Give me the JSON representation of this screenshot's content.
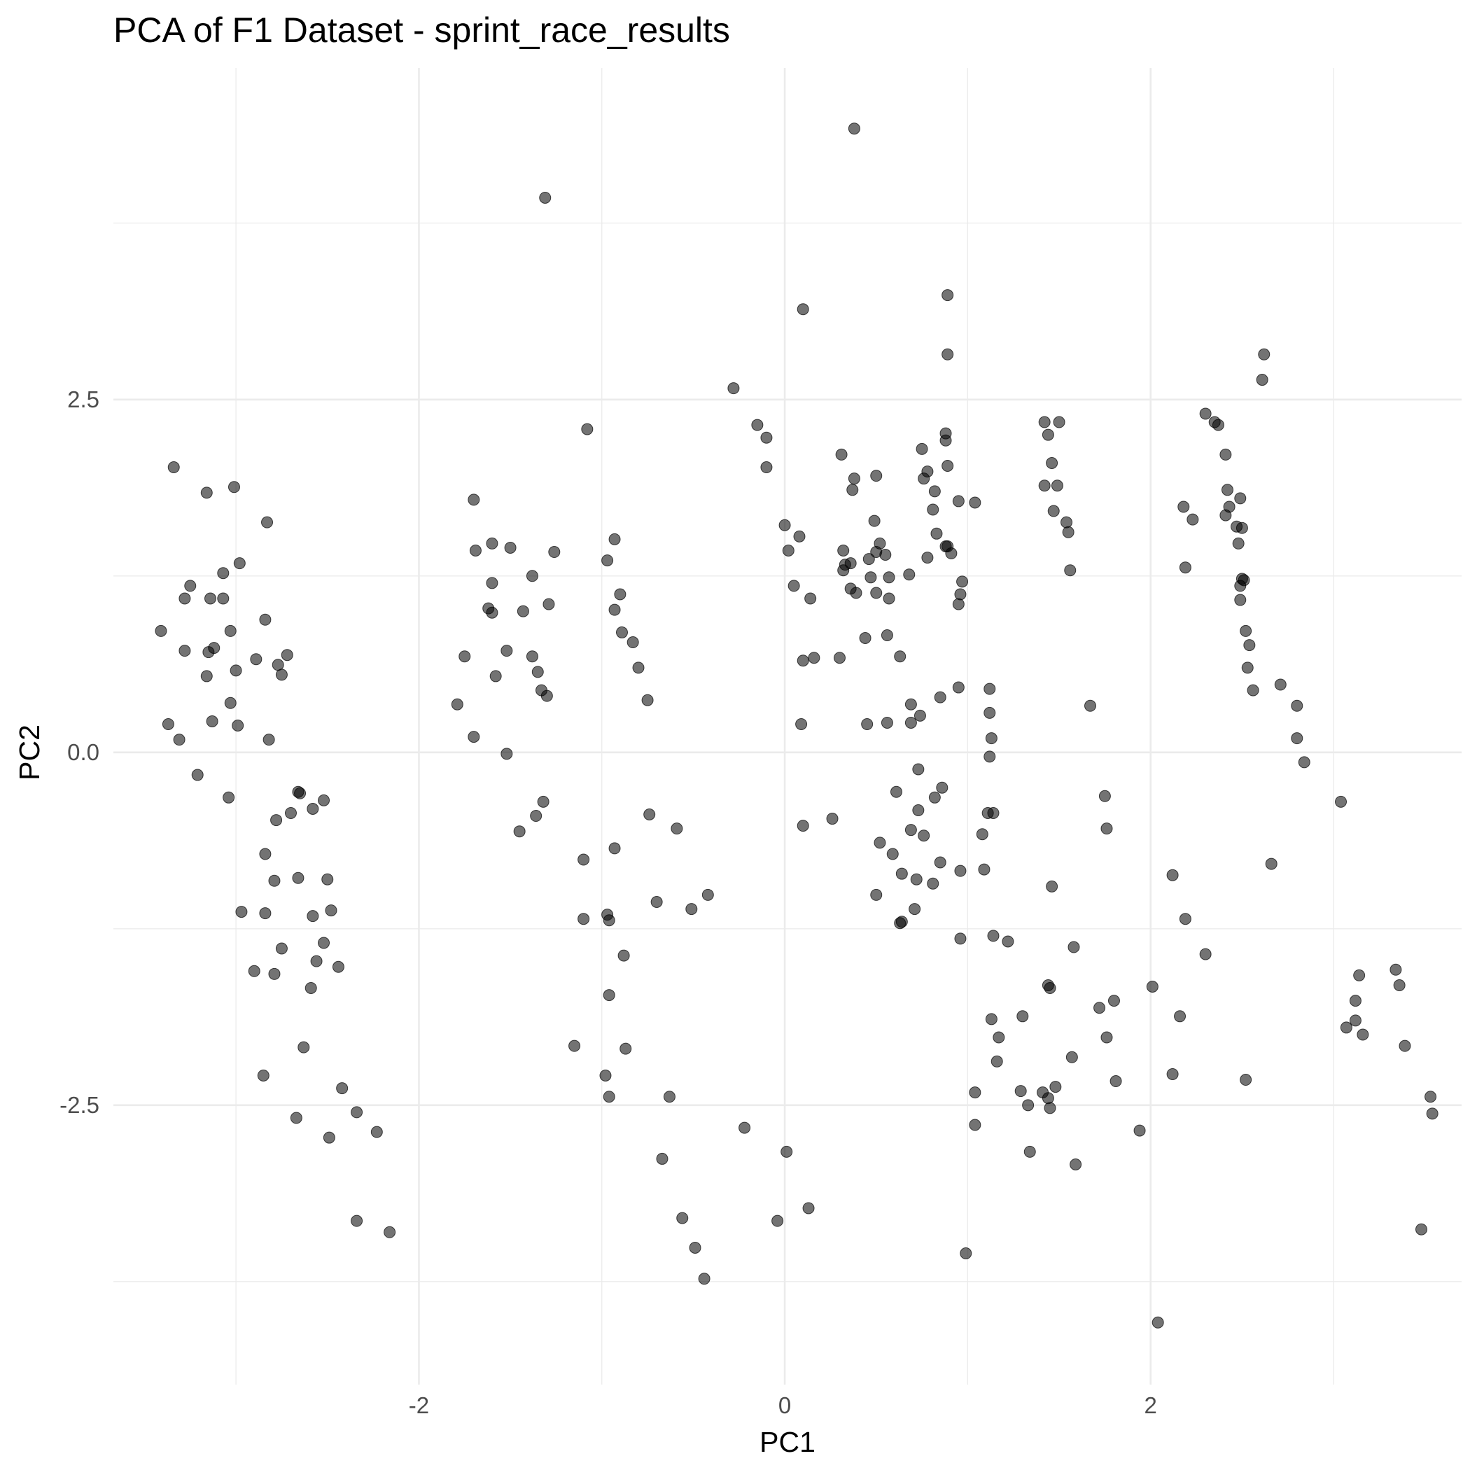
{
  "chart_data": {
    "type": "scatter",
    "title": "PCA of F1 Dataset - sprint_race_results",
    "xlabel": "PC1",
    "ylabel": "PC2",
    "xlim": [
      -3.67,
      3.7
    ],
    "ylim": [
      -4.48,
      4.85
    ],
    "x_ticks": [
      -2,
      0,
      2
    ],
    "x_tick_labels": [
      "-2",
      "0",
      "2"
    ],
    "x_minor": [
      -3,
      -1,
      1,
      3
    ],
    "y_ticks": [
      -2.5,
      0.0,
      2.5
    ],
    "y_tick_labels": [
      "-2.5",
      "0.0",
      "2.5"
    ],
    "y_minor": [
      -3.75,
      -1.25,
      1.25,
      3.75
    ],
    "grid": true,
    "point_color": "#000000",
    "point_opacity": 0.55,
    "points": [
      [
        -3.34,
        2.02
      ],
      [
        -3.16,
        1.84
      ],
      [
        -3.01,
        1.88
      ],
      [
        -2.83,
        1.63
      ],
      [
        -3.25,
        1.18
      ],
      [
        -3.28,
        1.09
      ],
      [
        -3.14,
        1.09
      ],
      [
        -3.07,
        1.09
      ],
      [
        -3.07,
        1.27
      ],
      [
        -2.98,
        1.34
      ],
      [
        -3.41,
        0.86
      ],
      [
        -3.12,
        0.74
      ],
      [
        -3.15,
        0.71
      ],
      [
        -2.84,
        0.94
      ],
      [
        -3.0,
        0.58
      ],
      [
        -3.16,
        0.54
      ],
      [
        -2.89,
        0.66
      ],
      [
        -2.77,
        0.62
      ],
      [
        -2.75,
        0.55
      ],
      [
        -2.72,
        0.69
      ],
      [
        -3.03,
        0.86
      ],
      [
        -3.28,
        0.72
      ],
      [
        -3.03,
        0.35
      ],
      [
        -3.37,
        0.2
      ],
      [
        -3.31,
        0.09
      ],
      [
        -3.13,
        0.22
      ],
      [
        -2.99,
        0.19
      ],
      [
        -2.82,
        0.09
      ],
      [
        -3.21,
        -0.16
      ],
      [
        -3.04,
        -0.32
      ],
      [
        -2.66,
        -0.28
      ],
      [
        -2.65,
        -0.29
      ],
      [
        -2.58,
        -0.4
      ],
      [
        -2.52,
        -0.34
      ],
      [
        -2.7,
        -0.43
      ],
      [
        -2.78,
        -0.48
      ],
      [
        -2.84,
        -0.72
      ],
      [
        -2.79,
        -0.91
      ],
      [
        -2.66,
        -0.89
      ],
      [
        -2.5,
        -0.9
      ],
      [
        -2.58,
        -1.16
      ],
      [
        -2.48,
        -1.12
      ],
      [
        -2.97,
        -1.13
      ],
      [
        -2.84,
        -1.14
      ],
      [
        -2.75,
        -1.39
      ],
      [
        -2.52,
        -1.35
      ],
      [
        -2.56,
        -1.48
      ],
      [
        -2.9,
        -1.55
      ],
      [
        -2.79,
        -1.57
      ],
      [
        -2.44,
        -1.52
      ],
      [
        -2.59,
        -1.67
      ],
      [
        -2.63,
        -2.09
      ],
      [
        -2.85,
        -2.29
      ],
      [
        -2.67,
        -2.59
      ],
      [
        -2.42,
        -2.38
      ],
      [
        -2.34,
        -2.55
      ],
      [
        -2.49,
        -2.73
      ],
      [
        -2.23,
        -2.69
      ],
      [
        -2.34,
        -3.32
      ],
      [
        -2.16,
        -3.4
      ],
      [
        -1.7,
        1.79
      ],
      [
        -1.69,
        1.43
      ],
      [
        -1.6,
        1.48
      ],
      [
        -1.5,
        1.45
      ],
      [
        -1.6,
        1.2
      ],
      [
        -1.62,
        1.02
      ],
      [
        -1.6,
        0.99
      ],
      [
        -1.43,
        1.0
      ],
      [
        -1.38,
        1.25
      ],
      [
        -1.26,
        1.42
      ],
      [
        -1.29,
        1.05
      ],
      [
        -1.75,
        0.68
      ],
      [
        -1.52,
        0.72
      ],
      [
        -1.58,
        0.54
      ],
      [
        -1.38,
        0.68
      ],
      [
        -1.35,
        0.57
      ],
      [
        -1.33,
        0.44
      ],
      [
        -1.3,
        0.4
      ],
      [
        -1.79,
        0.34
      ],
      [
        -1.7,
        0.11
      ],
      [
        -1.52,
        -0.01
      ],
      [
        -1.32,
        -0.35
      ],
      [
        -1.36,
        -0.45
      ],
      [
        -1.45,
        -0.56
      ],
      [
        -1.31,
        3.93
      ],
      [
        -1.08,
        2.29
      ],
      [
        -0.93,
        1.51
      ],
      [
        -0.97,
        1.36
      ],
      [
        -0.9,
        1.12
      ],
      [
        -0.93,
        1.01
      ],
      [
        -0.89,
        0.85
      ],
      [
        -0.83,
        0.78
      ],
      [
        -0.8,
        0.6
      ],
      [
        -0.75,
        0.37
      ],
      [
        -0.74,
        -0.44
      ],
      [
        -0.59,
        -0.54
      ],
      [
        -0.93,
        -0.68
      ],
      [
        -1.1,
        -0.76
      ],
      [
        -0.7,
        -1.06
      ],
      [
        -1.1,
        -1.18
      ],
      [
        -0.97,
        -1.15
      ],
      [
        -0.96,
        -1.19
      ],
      [
        -0.88,
        -1.44
      ],
      [
        -0.96,
        -1.72
      ],
      [
        -0.51,
        -1.11
      ],
      [
        -0.42,
        -1.01
      ],
      [
        -1.15,
        -2.08
      ],
      [
        -0.98,
        -2.29
      ],
      [
        -0.87,
        -2.1
      ],
      [
        -0.96,
        -2.44
      ],
      [
        -0.63,
        -2.44
      ],
      [
        -0.67,
        -2.88
      ],
      [
        -0.56,
        -3.3
      ],
      [
        -0.49,
        -3.51
      ],
      [
        -0.44,
        -3.73
      ],
      [
        -0.22,
        -2.66
      ],
      [
        -0.04,
        -3.32
      ],
      [
        0.01,
        -2.83
      ],
      [
        0.13,
        -3.23
      ],
      [
        -0.28,
        2.58
      ],
      [
        -0.15,
        2.32
      ],
      [
        -0.1,
        2.23
      ],
      [
        -0.1,
        2.02
      ],
      [
        0.1,
        3.14
      ],
      [
        0.38,
        4.42
      ],
      [
        0.0,
        1.61
      ],
      [
        0.02,
        1.43
      ],
      [
        0.08,
        1.53
      ],
      [
        0.05,
        1.18
      ],
      [
        0.14,
        1.09
      ],
      [
        0.1,
        0.65
      ],
      [
        0.16,
        0.67
      ],
      [
        0.3,
        0.67
      ],
      [
        0.09,
        0.2
      ],
      [
        0.1,
        -0.52
      ],
      [
        0.26,
        -0.47
      ],
      [
        0.31,
        2.11
      ],
      [
        0.38,
        1.94
      ],
      [
        0.37,
        1.86
      ],
      [
        0.5,
        1.96
      ],
      [
        0.32,
        1.43
      ],
      [
        0.33,
        1.33
      ],
      [
        0.36,
        1.34
      ],
      [
        0.32,
        1.29
      ],
      [
        0.46,
        1.37
      ],
      [
        0.5,
        1.42
      ],
      [
        0.52,
        1.48
      ],
      [
        0.55,
        1.4
      ],
      [
        0.49,
        1.64
      ],
      [
        0.36,
        1.16
      ],
      [
        0.39,
        1.13
      ],
      [
        0.47,
        1.24
      ],
      [
        0.5,
        1.13
      ],
      [
        0.57,
        1.24
      ],
      [
        0.57,
        1.09
      ],
      [
        0.44,
        0.81
      ],
      [
        0.56,
        0.83
      ],
      [
        0.63,
        0.68
      ],
      [
        0.68,
        1.26
      ],
      [
        0.69,
        0.34
      ],
      [
        0.74,
        0.26
      ],
      [
        0.45,
        0.2
      ],
      [
        0.56,
        0.21
      ],
      [
        0.69,
        0.21
      ],
      [
        0.73,
        -0.12
      ],
      [
        0.61,
        -0.28
      ],
      [
        0.73,
        -0.41
      ],
      [
        0.82,
        -0.32
      ],
      [
        0.86,
        -0.25
      ],
      [
        0.69,
        -0.55
      ],
      [
        0.76,
        -0.59
      ],
      [
        0.52,
        -0.64
      ],
      [
        0.59,
        -0.72
      ],
      [
        0.64,
        -0.86
      ],
      [
        0.72,
        -0.9
      ],
      [
        0.81,
        -0.93
      ],
      [
        0.85,
        -0.78
      ],
      [
        0.5,
        -1.01
      ],
      [
        0.64,
        -1.2
      ],
      [
        0.71,
        -1.11
      ],
      [
        0.63,
        -1.21
      ],
      [
        0.75,
        2.15
      ],
      [
        0.78,
        1.99
      ],
      [
        0.76,
        1.94
      ],
      [
        0.82,
        1.85
      ],
      [
        0.81,
        1.72
      ],
      [
        0.88,
        2.26
      ],
      [
        0.88,
        2.21
      ],
      [
        0.89,
        2.03
      ],
      [
        0.88,
        1.46
      ],
      [
        0.89,
        1.46
      ],
      [
        0.91,
        1.41
      ],
      [
        0.78,
        1.38
      ],
      [
        0.95,
        1.78
      ],
      [
        1.04,
        1.77
      ],
      [
        0.83,
        1.55
      ],
      [
        0.89,
        3.24
      ],
      [
        0.89,
        2.82
      ],
      [
        0.97,
        1.21
      ],
      [
        0.96,
        1.12
      ],
      [
        0.95,
        1.05
      ],
      [
        0.85,
        0.39
      ],
      [
        0.95,
        0.46
      ],
      [
        0.96,
        -0.84
      ],
      [
        1.08,
        -0.58
      ],
      [
        1.11,
        -0.43
      ],
      [
        1.14,
        -0.43
      ],
      [
        1.09,
        -0.83
      ],
      [
        0.96,
        -1.32
      ],
      [
        1.14,
        -1.3
      ],
      [
        1.13,
        -1.89
      ],
      [
        1.17,
        -2.02
      ],
      [
        1.16,
        -2.19
      ],
      [
        1.04,
        -2.41
      ],
      [
        1.04,
        -2.64
      ],
      [
        0.99,
        -3.55
      ],
      [
        1.12,
        0.45
      ],
      [
        1.12,
        0.28
      ],
      [
        1.13,
        0.1
      ],
      [
        1.12,
        -0.03
      ],
      [
        1.22,
        -1.34
      ],
      [
        1.29,
        -2.4
      ],
      [
        1.33,
        -2.5
      ],
      [
        1.34,
        -2.83
      ],
      [
        1.41,
        -2.41
      ],
      [
        1.44,
        -2.45
      ],
      [
        1.45,
        -2.52
      ],
      [
        1.48,
        -2.37
      ],
      [
        1.3,
        -1.87
      ],
      [
        1.44,
        -1.65
      ],
      [
        1.45,
        -1.67
      ],
      [
        1.46,
        -0.95
      ],
      [
        1.58,
        -1.38
      ],
      [
        1.57,
        -2.16
      ],
      [
        1.59,
        -2.92
      ],
      [
        1.42,
        2.34
      ],
      [
        1.5,
        2.34
      ],
      [
        1.44,
        2.25
      ],
      [
        1.46,
        2.05
      ],
      [
        1.42,
        1.89
      ],
      [
        1.47,
        1.71
      ],
      [
        1.49,
        1.89
      ],
      [
        1.54,
        1.63
      ],
      [
        1.55,
        1.56
      ],
      [
        1.56,
        1.29
      ],
      [
        1.67,
        0.33
      ],
      [
        1.75,
        -0.31
      ],
      [
        1.76,
        -0.54
      ],
      [
        1.81,
        -2.33
      ],
      [
        1.8,
        -1.76
      ],
      [
        1.72,
        -1.81
      ],
      [
        1.76,
        -2.02
      ],
      [
        1.94,
        -2.68
      ],
      [
        2.01,
        -1.66
      ],
      [
        2.04,
        -4.04
      ],
      [
        2.12,
        -0.87
      ],
      [
        2.19,
        -1.18
      ],
      [
        2.16,
        -1.87
      ],
      [
        2.3,
        -1.43
      ],
      [
        2.12,
        -2.28
      ],
      [
        2.18,
        1.74
      ],
      [
        2.23,
        1.65
      ],
      [
        2.19,
        1.31
      ],
      [
        2.3,
        2.4
      ],
      [
        2.35,
        2.34
      ],
      [
        2.37,
        2.32
      ],
      [
        2.41,
        2.11
      ],
      [
        2.42,
        1.86
      ],
      [
        2.41,
        1.68
      ],
      [
        2.43,
        1.74
      ],
      [
        2.47,
        1.6
      ],
      [
        2.49,
        1.8
      ],
      [
        2.5,
        1.59
      ],
      [
        2.48,
        1.48
      ],
      [
        2.5,
        1.23
      ],
      [
        2.51,
        1.22
      ],
      [
        2.49,
        1.18
      ],
      [
        2.49,
        1.08
      ],
      [
        2.52,
        0.86
      ],
      [
        2.54,
        0.76
      ],
      [
        2.53,
        0.6
      ],
      [
        2.56,
        0.44
      ],
      [
        2.61,
        2.64
      ],
      [
        2.62,
        2.82
      ],
      [
        2.66,
        -0.79
      ],
      [
        2.52,
        -2.32
      ],
      [
        2.71,
        0.48
      ],
      [
        2.8,
        0.33
      ],
      [
        2.8,
        0.1
      ],
      [
        2.84,
        -0.07
      ],
      [
        3.04,
        -0.35
      ],
      [
        3.07,
        -1.95
      ],
      [
        3.12,
        -1.9
      ],
      [
        3.12,
        -1.76
      ],
      [
        3.14,
        -1.58
      ],
      [
        3.34,
        -1.54
      ],
      [
        3.36,
        -1.65
      ],
      [
        3.39,
        -2.08
      ],
      [
        3.54,
        -2.56
      ],
      [
        3.53,
        -2.44
      ],
      [
        3.48,
        -3.38
      ],
      [
        3.16,
        -2.0
      ]
    ]
  }
}
